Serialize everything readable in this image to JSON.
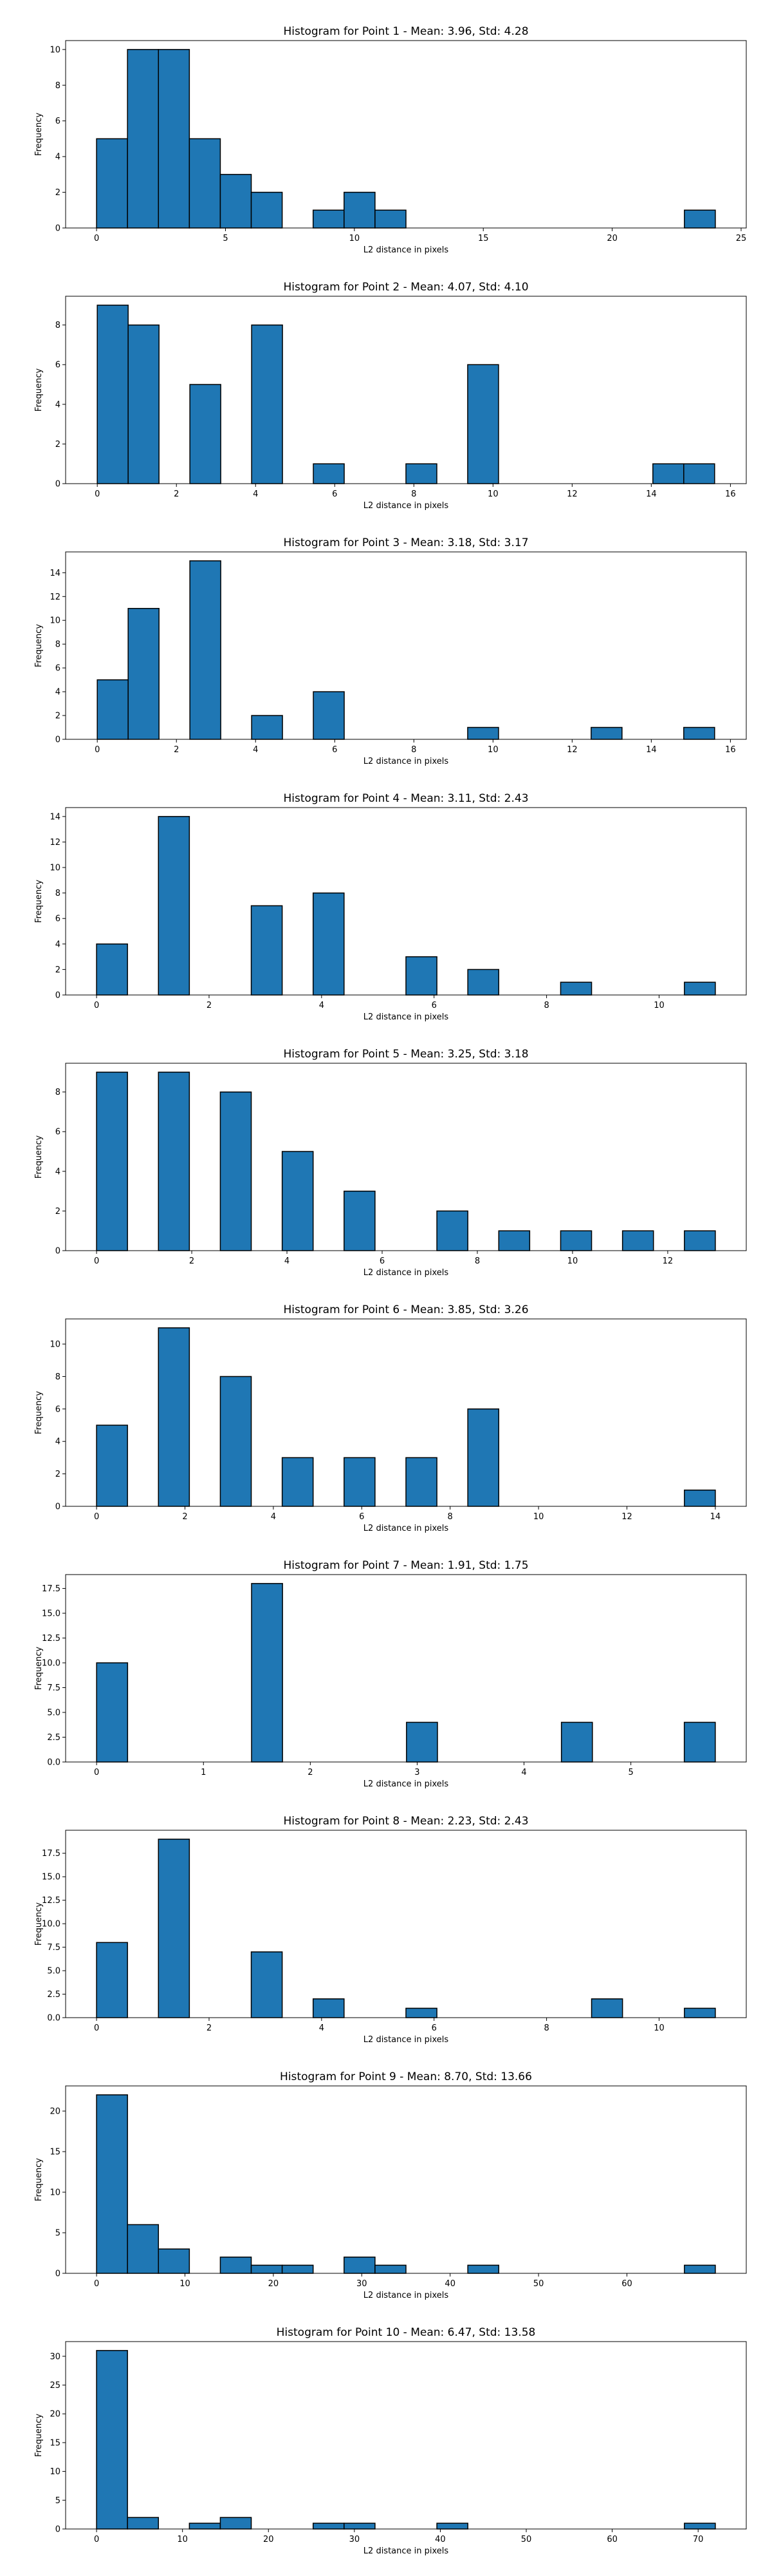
{
  "chart_data": [
    {
      "type": "bar",
      "title": "Histogram for Point 1 - Mean: 3.96, Std: 4.28",
      "xlabel": "L2 distance in pixels",
      "ylabel": "Frequency",
      "xlim": [
        -1.2,
        25.2
      ],
      "ylim": [
        0,
        10.5
      ],
      "xticks": [
        0,
        5,
        10,
        15,
        20,
        25
      ],
      "xtick_labels": [
        "0",
        "5",
        "10",
        "15",
        "20",
        "25"
      ],
      "yticks": [
        0,
        2,
        4,
        6,
        8,
        10
      ],
      "ytick_labels": [
        "0",
        "2",
        "4",
        "6",
        "8",
        "10"
      ],
      "bins": [
        {
          "x0": 0,
          "x1": 1.2,
          "value": 5
        },
        {
          "x0": 1.2,
          "x1": 2.4,
          "value": 10
        },
        {
          "x0": 2.4,
          "x1": 3.6,
          "value": 10
        },
        {
          "x0": 3.6,
          "x1": 4.8,
          "value": 5
        },
        {
          "x0": 4.8,
          "x1": 6.0,
          "value": 3
        },
        {
          "x0": 6.0,
          "x1": 7.2,
          "value": 2
        },
        {
          "x0": 8.4,
          "x1": 9.6,
          "value": 1
        },
        {
          "x0": 9.6,
          "x1": 10.8,
          "value": 2
        },
        {
          "x0": 10.8,
          "x1": 12.0,
          "value": 1
        },
        {
          "x0": 22.8,
          "x1": 24.0,
          "value": 1
        }
      ]
    },
    {
      "type": "bar",
      "title": "Histogram for Point 2 - Mean: 4.07, Std: 4.10",
      "xlabel": "L2 distance in pixels",
      "ylabel": "Frequency",
      "xlim": [
        -0.8,
        16.4
      ],
      "ylim": [
        0,
        9.45
      ],
      "xticks": [
        0,
        2,
        4,
        6,
        8,
        10,
        12,
        14,
        16
      ],
      "xtick_labels": [
        "0",
        "2",
        "4",
        "6",
        "8",
        "10",
        "12",
        "14",
        "16"
      ],
      "yticks": [
        0,
        2,
        4,
        6,
        8
      ],
      "ytick_labels": [
        "0",
        "2",
        "4",
        "6",
        "8"
      ],
      "bins": [
        {
          "x0": 0,
          "x1": 0.78,
          "value": 9
        },
        {
          "x0": 0.78,
          "x1": 1.56,
          "value": 8
        },
        {
          "x0": 2.34,
          "x1": 3.12,
          "value": 5
        },
        {
          "x0": 3.9,
          "x1": 4.68,
          "value": 8
        },
        {
          "x0": 5.46,
          "x1": 6.24,
          "value": 1
        },
        {
          "x0": 7.8,
          "x1": 8.58,
          "value": 1
        },
        {
          "x0": 9.36,
          "x1": 10.14,
          "value": 6
        },
        {
          "x0": 14.04,
          "x1": 14.82,
          "value": 1
        },
        {
          "x0": 14.82,
          "x1": 15.6,
          "value": 1
        }
      ]
    },
    {
      "type": "bar",
      "title": "Histogram for Point 3 - Mean: 3.18, Std: 3.17",
      "xlabel": "L2 distance in pixels",
      "ylabel": "Frequency",
      "xlim": [
        -0.8,
        16.4
      ],
      "ylim": [
        0,
        15.75
      ],
      "xticks": [
        0,
        2,
        4,
        6,
        8,
        10,
        12,
        14,
        16
      ],
      "xtick_labels": [
        "0",
        "2",
        "4",
        "6",
        "8",
        "10",
        "12",
        "14",
        "16"
      ],
      "yticks": [
        0,
        2,
        4,
        6,
        8,
        10,
        12,
        14
      ],
      "ytick_labels": [
        "0",
        "2",
        "4",
        "6",
        "8",
        "10",
        "12",
        "14"
      ],
      "bins": [
        {
          "x0": 0,
          "x1": 0.78,
          "value": 5
        },
        {
          "x0": 0.78,
          "x1": 1.56,
          "value": 11
        },
        {
          "x0": 2.34,
          "x1": 3.12,
          "value": 15
        },
        {
          "x0": 3.9,
          "x1": 4.68,
          "value": 2
        },
        {
          "x0": 5.46,
          "x1": 6.24,
          "value": 4
        },
        {
          "x0": 9.36,
          "x1": 10.14,
          "value": 1
        },
        {
          "x0": 12.48,
          "x1": 13.26,
          "value": 1
        },
        {
          "x0": 14.82,
          "x1": 15.6,
          "value": 1
        }
      ]
    },
    {
      "type": "bar",
      "title": "Histogram for Point 4 - Mean: 3.11, Std: 2.43",
      "xlabel": "L2 distance in pixels",
      "ylabel": "Frequency",
      "xlim": [
        -0.55,
        11.55
      ],
      "ylim": [
        0,
        14.7
      ],
      "xticks": [
        0,
        2,
        4,
        6,
        8,
        10
      ],
      "xtick_labels": [
        "0",
        "2",
        "4",
        "6",
        "8",
        "10"
      ],
      "yticks": [
        0,
        2,
        4,
        6,
        8,
        10,
        12,
        14
      ],
      "ytick_labels": [
        "0",
        "2",
        "4",
        "6",
        "8",
        "10",
        "12",
        "14"
      ],
      "bins": [
        {
          "x0": 0,
          "x1": 0.55,
          "value": 4
        },
        {
          "x0": 1.1,
          "x1": 1.65,
          "value": 14
        },
        {
          "x0": 2.75,
          "x1": 3.3,
          "value": 7
        },
        {
          "x0": 3.85,
          "x1": 4.4,
          "value": 8
        },
        {
          "x0": 5.5,
          "x1": 6.05,
          "value": 3
        },
        {
          "x0": 6.6,
          "x1": 7.15,
          "value": 2
        },
        {
          "x0": 8.25,
          "x1": 8.8,
          "value": 1
        },
        {
          "x0": 10.45,
          "x1": 11.0,
          "value": 1
        }
      ]
    },
    {
      "type": "bar",
      "title": "Histogram for Point 5 - Mean: 3.25, Std: 3.18",
      "xlabel": "L2 distance in pixels",
      "ylabel": "Frequency",
      "xlim": [
        -0.65,
        13.65
      ],
      "ylim": [
        0,
        9.45
      ],
      "xticks": [
        0,
        2,
        4,
        6,
        8,
        10,
        12
      ],
      "xtick_labels": [
        "0",
        "2",
        "4",
        "6",
        "8",
        "10",
        "12"
      ],
      "yticks": [
        0,
        2,
        4,
        6,
        8
      ],
      "ytick_labels": [
        "0",
        "2",
        "4",
        "6",
        "8"
      ],
      "bins": [
        {
          "x0": 0,
          "x1": 0.65,
          "value": 9
        },
        {
          "x0": 1.3,
          "x1": 1.95,
          "value": 9
        },
        {
          "x0": 2.6,
          "x1": 3.25,
          "value": 8
        },
        {
          "x0": 3.9,
          "x1": 4.55,
          "value": 5
        },
        {
          "x0": 5.2,
          "x1": 5.85,
          "value": 3
        },
        {
          "x0": 7.15,
          "x1": 7.8,
          "value": 2
        },
        {
          "x0": 8.45,
          "x1": 9.1,
          "value": 1
        },
        {
          "x0": 9.75,
          "x1": 10.4,
          "value": 1
        },
        {
          "x0": 11.05,
          "x1": 11.7,
          "value": 1
        },
        {
          "x0": 12.35,
          "x1": 13.0,
          "value": 1
        }
      ]
    },
    {
      "type": "bar",
      "title": "Histogram for Point 6 - Mean: 3.85, Std: 3.26",
      "xlabel": "L2 distance in pixels",
      "ylabel": "Frequency",
      "xlim": [
        -0.7,
        14.7
      ],
      "ylim": [
        0,
        11.55
      ],
      "xticks": [
        0,
        2,
        4,
        6,
        8,
        10,
        12,
        14
      ],
      "xtick_labels": [
        "0",
        "2",
        "4",
        "6",
        "8",
        "10",
        "12",
        "14"
      ],
      "yticks": [
        0,
        2,
        4,
        6,
        8,
        10
      ],
      "ytick_labels": [
        "0",
        "2",
        "4",
        "6",
        "8",
        "10"
      ],
      "bins": [
        {
          "x0": 0,
          "x1": 0.7,
          "value": 5
        },
        {
          "x0": 1.4,
          "x1": 2.1,
          "value": 11
        },
        {
          "x0": 2.8,
          "x1": 3.5,
          "value": 8
        },
        {
          "x0": 4.2,
          "x1": 4.9,
          "value": 3
        },
        {
          "x0": 5.6,
          "x1": 6.3,
          "value": 3
        },
        {
          "x0": 7.0,
          "x1": 7.7,
          "value": 3
        },
        {
          "x0": 8.4,
          "x1": 9.1,
          "value": 6
        },
        {
          "x0": 13.3,
          "x1": 14.0,
          "value": 1
        }
      ]
    },
    {
      "type": "bar",
      "title": "Histogram for Point 7 - Mean: 1.91, Std: 1.75",
      "xlabel": "L2 distance in pixels",
      "ylabel": "Frequency",
      "xlim": [
        -0.29,
        6.08
      ],
      "ylim": [
        0,
        18.9
      ],
      "xticks": [
        0,
        1,
        2,
        3,
        4,
        5
      ],
      "xtick_labels": [
        "0",
        "1",
        "2",
        "3",
        "4",
        "5"
      ],
      "yticks": [
        0,
        2.5,
        5,
        7.5,
        10,
        12.5,
        15,
        17.5
      ],
      "ytick_labels": [
        "0.0",
        "2.5",
        "5.0",
        "7.5",
        "10.0",
        "12.5",
        "15.0",
        "17.5"
      ],
      "bins": [
        {
          "x0": 0,
          "x1": 0.29,
          "value": 10
        },
        {
          "x0": 1.45,
          "x1": 1.74,
          "value": 18
        },
        {
          "x0": 2.9,
          "x1": 3.19,
          "value": 4
        },
        {
          "x0": 4.35,
          "x1": 4.64,
          "value": 4
        },
        {
          "x0": 5.5,
          "x1": 5.79,
          "value": 4
        }
      ]
    },
    {
      "type": "bar",
      "title": "Histogram for Point 8 - Mean: 2.23, Std: 2.43",
      "xlabel": "L2 distance in pixels",
      "ylabel": "Frequency",
      "xlim": [
        -0.55,
        11.55
      ],
      "ylim": [
        0,
        19.95
      ],
      "xticks": [
        0,
        2,
        4,
        6,
        8,
        10
      ],
      "xtick_labels": [
        "0",
        "2",
        "4",
        "6",
        "8",
        "10"
      ],
      "yticks": [
        0,
        2.5,
        5,
        7.5,
        10,
        12.5,
        15,
        17.5
      ],
      "ytick_labels": [
        "0.0",
        "2.5",
        "5.0",
        "7.5",
        "10.0",
        "12.5",
        "15.0",
        "17.5"
      ],
      "bins": [
        {
          "x0": 0,
          "x1": 0.55,
          "value": 8
        },
        {
          "x0": 1.1,
          "x1": 1.65,
          "value": 19
        },
        {
          "x0": 2.75,
          "x1": 3.3,
          "value": 7
        },
        {
          "x0": 3.85,
          "x1": 4.4,
          "value": 2
        },
        {
          "x0": 5.5,
          "x1": 6.05,
          "value": 1
        },
        {
          "x0": 8.8,
          "x1": 9.35,
          "value": 2
        },
        {
          "x0": 10.45,
          "x1": 11.0,
          "value": 1
        }
      ]
    },
    {
      "type": "bar",
      "title": "Histogram for Point 9 - Mean: 8.70, Std: 13.66",
      "xlabel": "L2 distance in pixels",
      "ylabel": "Frequency",
      "xlim": [
        -3.5,
        73.5
      ],
      "ylim": [
        0,
        23.1
      ],
      "xticks": [
        0,
        10,
        20,
        30,
        40,
        50,
        60
      ],
      "xtick_labels": [
        "0",
        "10",
        "20",
        "30",
        "40",
        "50",
        "60"
      ],
      "yticks": [
        0,
        5,
        10,
        15,
        20
      ],
      "ytick_labels": [
        "0",
        "5",
        "10",
        "15",
        "20"
      ],
      "bins": [
        {
          "x0": 0,
          "x1": 3.5,
          "value": 22
        },
        {
          "x0": 3.5,
          "x1": 7.0,
          "value": 6
        },
        {
          "x0": 7.0,
          "x1": 10.5,
          "value": 3
        },
        {
          "x0": 14.0,
          "x1": 17.5,
          "value": 2
        },
        {
          "x0": 17.5,
          "x1": 21.0,
          "value": 1
        },
        {
          "x0": 21.0,
          "x1": 24.5,
          "value": 1
        },
        {
          "x0": 28.0,
          "x1": 31.5,
          "value": 2
        },
        {
          "x0": 31.5,
          "x1": 35.0,
          "value": 1
        },
        {
          "x0": 42.0,
          "x1": 45.5,
          "value": 1
        },
        {
          "x0": 66.5,
          "x1": 70.0,
          "value": 1
        }
      ]
    },
    {
      "type": "bar",
      "title": "Histogram for Point 10 - Mean: 6.47, Std: 13.58",
      "xlabel": "L2 distance in pixels",
      "ylabel": "Frequency",
      "xlim": [
        -3.6,
        75.6
      ],
      "ylim": [
        0,
        32.55
      ],
      "xticks": [
        0,
        10,
        20,
        30,
        40,
        50,
        60,
        70
      ],
      "xtick_labels": [
        "0",
        "10",
        "20",
        "30",
        "40",
        "50",
        "60",
        "70"
      ],
      "yticks": [
        0,
        5,
        10,
        15,
        20,
        25,
        30
      ],
      "ytick_labels": [
        "0",
        "5",
        "10",
        "15",
        "20",
        "25",
        "30"
      ],
      "bins": [
        {
          "x0": 0,
          "x1": 3.6,
          "value": 31
        },
        {
          "x0": 3.6,
          "x1": 7.2,
          "value": 2
        },
        {
          "x0": 10.8,
          "x1": 14.4,
          "value": 1
        },
        {
          "x0": 14.4,
          "x1": 18.0,
          "value": 2
        },
        {
          "x0": 25.2,
          "x1": 28.8,
          "value": 1
        },
        {
          "x0": 28.8,
          "x1": 32.4,
          "value": 1
        },
        {
          "x0": 39.6,
          "x1": 43.2,
          "value": 1
        },
        {
          "x0": 68.4,
          "x1": 72.0,
          "value": 1
        }
      ]
    }
  ],
  "colors": {
    "bar_fill": "#1f77b4",
    "bar_edge": "#000000",
    "axes": "#000000",
    "background": "#ffffff"
  }
}
